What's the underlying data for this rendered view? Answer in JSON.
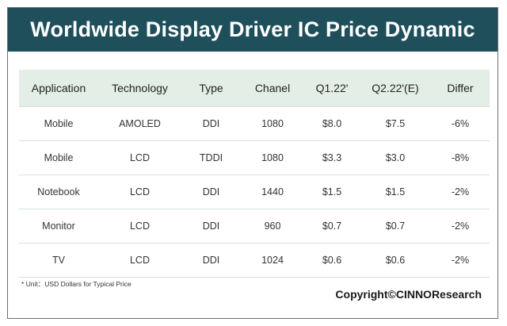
{
  "title": "Worldwide Display Driver IC Price Dynamic",
  "colors": {
    "title_bar": "#1f4f5a",
    "header_row": "#e3eee6",
    "row_divider": "#d2e2d6"
  },
  "chart_data": {
    "type": "table",
    "columns": [
      "Application",
      "Technology",
      "Type",
      "Chanel",
      "Q1.22'",
      "Q2.22'(E)",
      "Differ"
    ],
    "rows": [
      [
        "Mobile",
        "AMOLED",
        "DDI",
        "1080",
        "$8.0",
        "$7.5",
        "-6%"
      ],
      [
        "Mobile",
        "LCD",
        "TDDI",
        "1080",
        "$3.3",
        "$3.0",
        "-8%"
      ],
      [
        "Notebook",
        "LCD",
        "DDI",
        "1440",
        "$1.5",
        "$1.5",
        "-2%"
      ],
      [
        "Monitor",
        "LCD",
        "DDI",
        "960",
        "$0.7",
        "$0.7",
        "-2%"
      ],
      [
        "TV",
        "LCD",
        "DDI",
        "1024",
        "$0.6",
        "$0.6",
        "-2%"
      ]
    ]
  },
  "footnote": "* Unit：USD Dollars for Typical Price",
  "copyright": "Copyright©CINNOResearch"
}
